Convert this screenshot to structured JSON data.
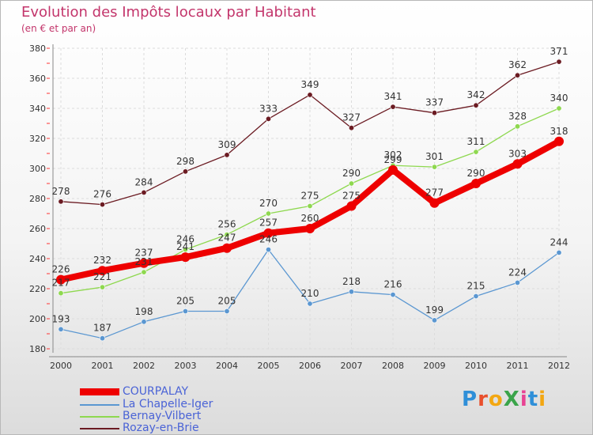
{
  "title": "Evolution des Impôts locaux par Habitant",
  "subtitle": "(en € et par an)",
  "logo": {
    "text": "ProXiti",
    "letter_colors": [
      "#2f8fd8",
      "#e94f2c",
      "#f3a712",
      "#3aa44a",
      "#e84393",
      "#2f8fd8",
      "#f3a712"
    ]
  },
  "chart_data": {
    "type": "line",
    "x": [
      "2000",
      "2001",
      "2002",
      "2003",
      "2004",
      "2005",
      "2006",
      "2007",
      "2008",
      "2009",
      "2010",
      "2011",
      "2012"
    ],
    "ylim": [
      180,
      380
    ],
    "yticks": [
      "180",
      "200",
      "220",
      "240",
      "260",
      "280",
      "300",
      "320",
      "340",
      "360",
      "380"
    ],
    "grid": true,
    "series": [
      {
        "name": "Rozay-en-Brie",
        "color": "#6b1b22",
        "bold": false,
        "values": [
          278,
          276,
          284,
          298,
          309,
          333,
          349,
          327,
          341,
          337,
          342,
          362,
          371
        ],
        "labels": [
          "278",
          "276",
          "284",
          "298",
          "309",
          "333",
          "349",
          "327",
          "341",
          "337",
          "342",
          "362",
          "371"
        ]
      },
      {
        "name": "Bernay-Vilbert",
        "color": "#8ed84f",
        "bold": false,
        "values": [
          217,
          221,
          231,
          246,
          256,
          270,
          275,
          290,
          302,
          301,
          311,
          328,
          340
        ],
        "labels": [
          "217",
          "221",
          "231",
          "246",
          "256",
          "270",
          "275",
          "290",
          "302",
          "301",
          "311",
          "328",
          "340"
        ]
      },
      {
        "name": "La Chapelle-Iger",
        "color": "#5b97d1",
        "bold": false,
        "values": [
          193,
          187,
          198,
          205,
          205,
          246,
          210,
          218,
          216,
          199,
          215,
          224,
          244
        ],
        "labels": [
          "193",
          "187",
          "198",
          "205",
          "205",
          "246",
          "210",
          "218",
          "216",
          "199",
          "215",
          "224",
          "244"
        ]
      },
      {
        "name": "COURPALAY",
        "color": "#ee0000",
        "bold": true,
        "values": [
          226,
          232,
          237,
          241,
          247,
          257,
          260,
          275,
          299,
          277,
          290,
          303,
          318
        ],
        "labels": [
          "226",
          "232",
          "237",
          "241",
          "247",
          "257",
          "260",
          "275",
          "299",
          "277",
          "290",
          "303",
          "318"
        ]
      }
    ],
    "legend": [
      "COURPALAY",
      "La Chapelle-Iger",
      "Bernay-Vilbert",
      "Rozay-en-Brie"
    ]
  }
}
